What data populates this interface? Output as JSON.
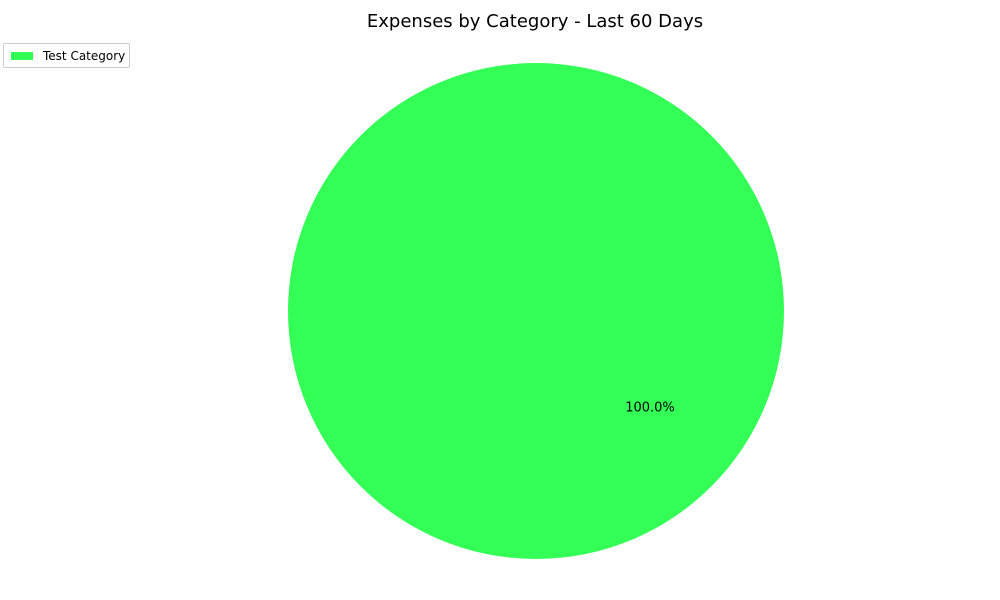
{
  "chart_data": {
    "type": "pie",
    "title": "Expenses by Category - Last 60 Days",
    "legend_placement": "top-left",
    "slices": [
      {
        "label": "Test Category",
        "value": 100.0,
        "percent_label": "100.0%",
        "color": "#33ff57"
      }
    ]
  }
}
